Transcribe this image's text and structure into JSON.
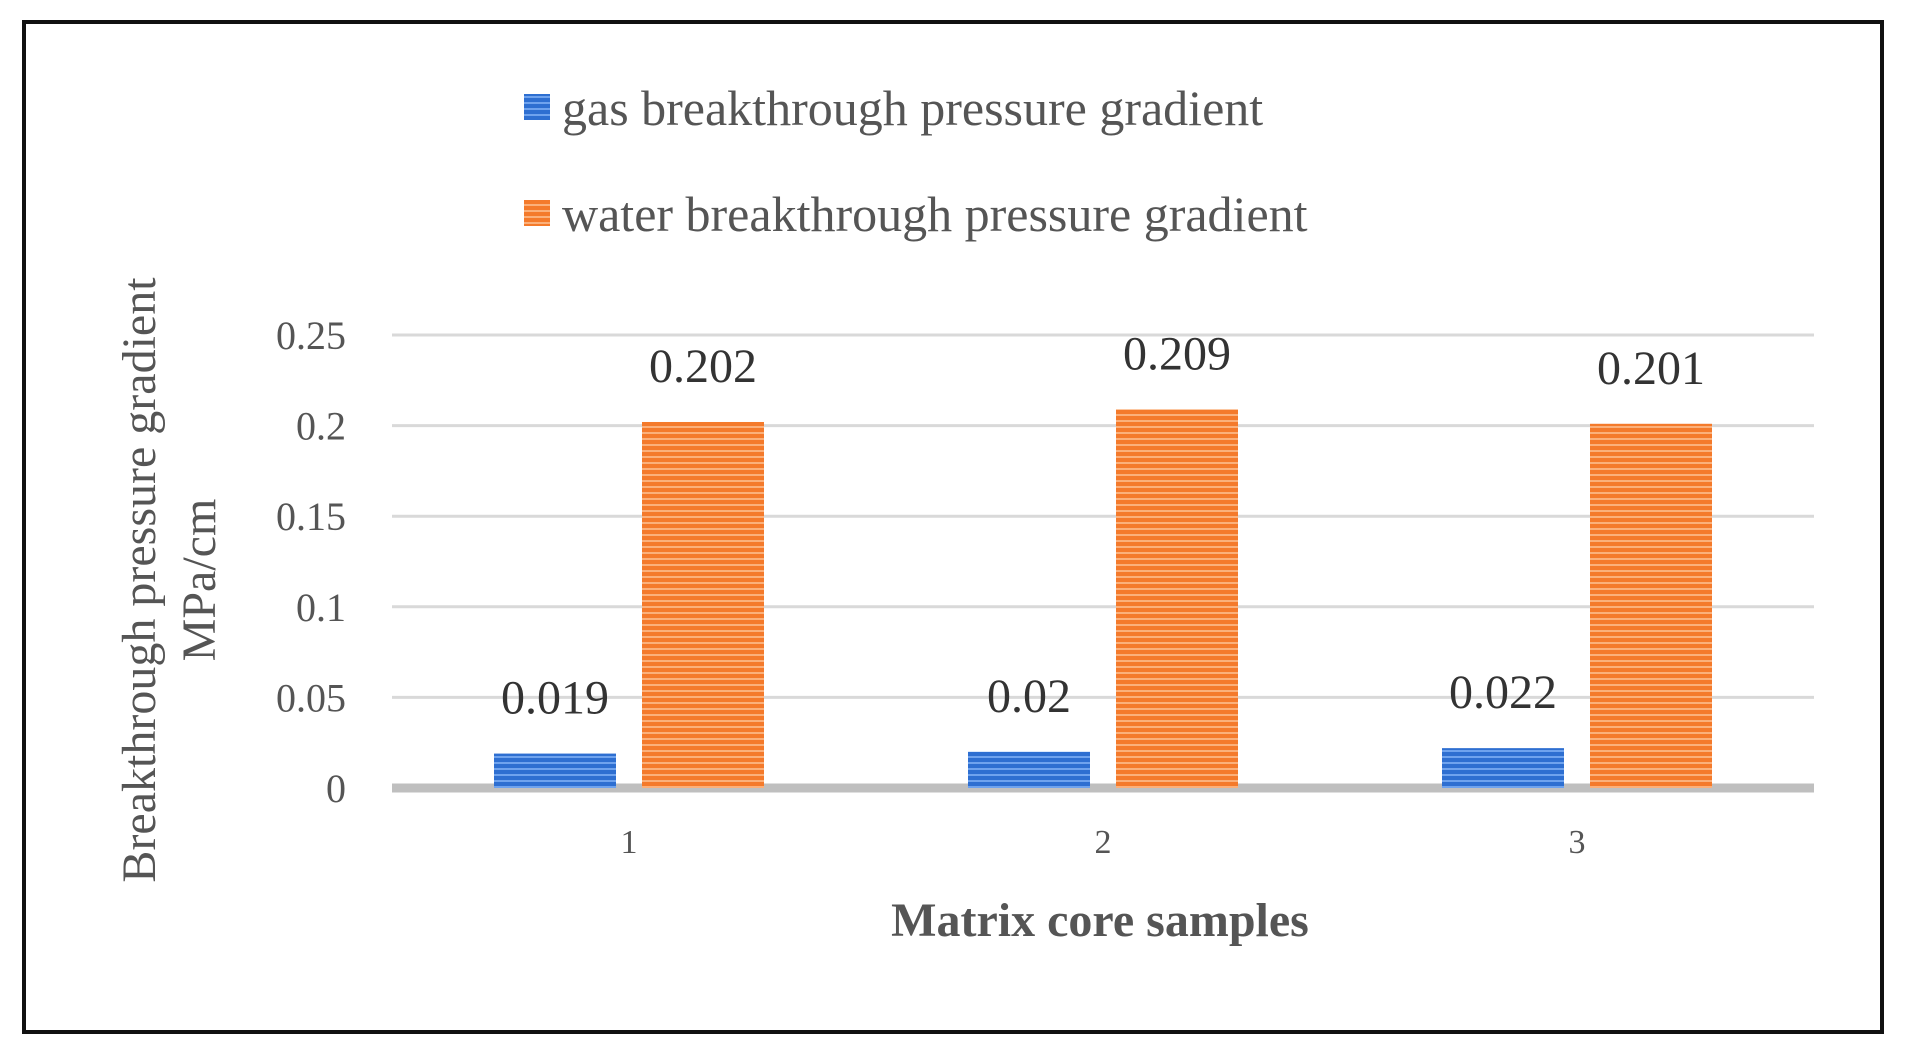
{
  "chart_data": {
    "type": "bar",
    "title": "",
    "xlabel": "Matrix core samples",
    "ylabel_lines": [
      "Breakthrough pressure gradient",
      "MPa/cm"
    ],
    "categories": [
      "1",
      "2",
      "3"
    ],
    "ylim": [
      0,
      0.25
    ],
    "yticks": [
      0,
      0.05,
      0.1,
      0.15,
      0.2,
      0.25
    ],
    "ytick_labels": [
      "0",
      "0.05",
      "0.1",
      "0.15",
      "0.2",
      "0.25"
    ],
    "grid": true,
    "legend_position": "top",
    "series": [
      {
        "name": "gas breakthrough pressure gradient",
        "color": "#2E6FD1",
        "values": [
          0.019,
          0.02,
          0.022
        ],
        "labels": [
          "0.019",
          "0.02",
          "0.022"
        ]
      },
      {
        "name": "water breakthrough pressure gradient",
        "color": "#F47A2B",
        "values": [
          0.202,
          0.209,
          0.201
        ],
        "labels": [
          "0.202",
          "0.209",
          "0.201"
        ]
      }
    ]
  }
}
